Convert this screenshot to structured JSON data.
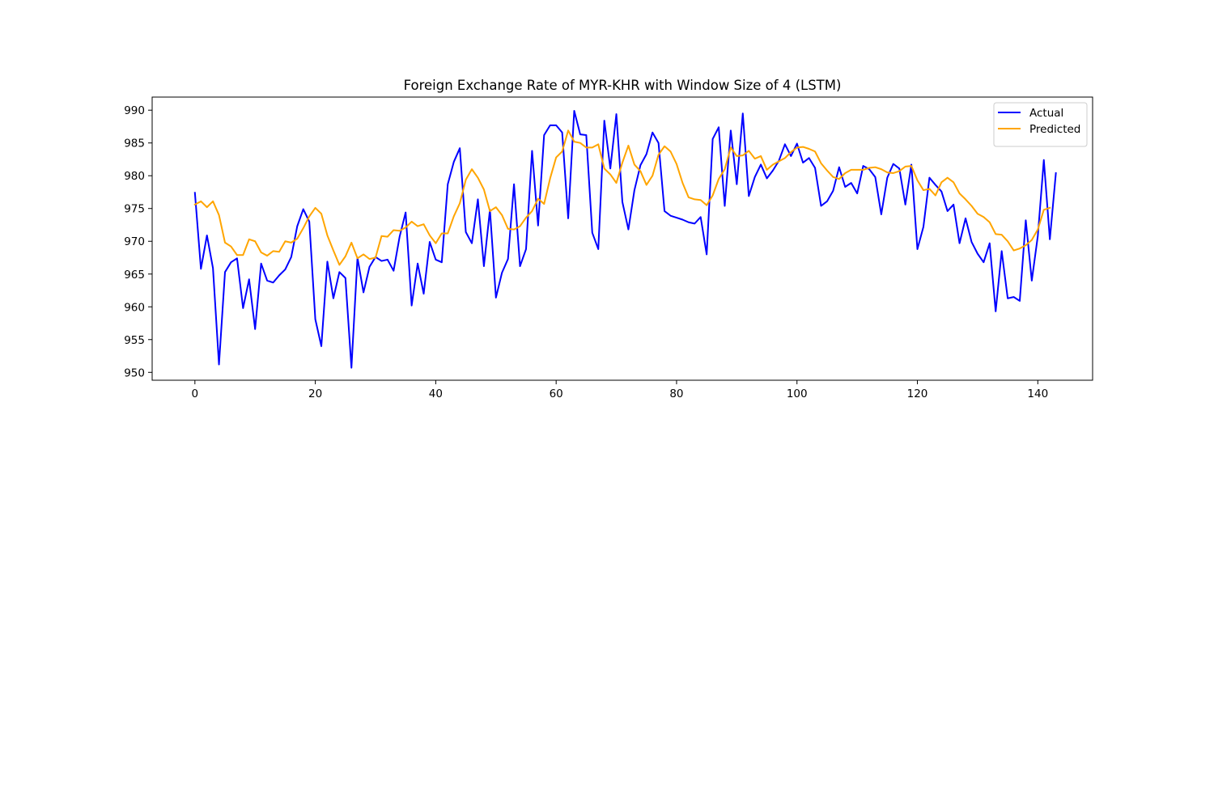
{
  "chart_data": {
    "type": "line",
    "title": "Foreign Exchange Rate of MYR-KHR with Window Size of 4 (LSTM)",
    "xlabel": "",
    "ylabel": "",
    "xlim": [
      -7.1,
      149.1
    ],
    "ylim": [
      948.8,
      992.0
    ],
    "x_ticks": [
      0,
      20,
      40,
      60,
      80,
      100,
      120,
      140
    ],
    "y_ticks": [
      950,
      955,
      960,
      965,
      970,
      975,
      980,
      985,
      990
    ],
    "grid": false,
    "legend": "upper right",
    "series": [
      {
        "name": "Actual",
        "color": "#0000ff",
        "values": [
          977.4,
          965.8,
          970.9,
          965.9,
          951.2,
          965.3,
          966.8,
          967.4,
          959.8,
          964.2,
          956.6,
          966.6,
          964.0,
          963.7,
          964.8,
          965.7,
          967.6,
          972.3,
          974.9,
          973.0,
          958.1,
          954.0,
          966.9,
          961.3,
          965.3,
          964.4,
          950.7,
          967.5,
          962.2,
          966.1,
          967.6,
          967.0,
          967.2,
          965.5,
          970.7,
          974.4,
          960.2,
          966.6,
          962.0,
          969.9,
          967.2,
          966.8,
          978.7,
          982.1,
          984.2,
          971.4,
          969.7,
          976.4,
          966.2,
          974.8,
          961.4,
          965.2,
          967.3,
          978.7,
          966.2,
          968.8,
          983.8,
          972.4,
          986.2,
          987.7,
          987.7,
          986.6,
          973.5,
          989.9,
          986.3,
          986.2,
          971.3,
          968.8,
          988.4,
          981.1,
          989.4,
          976.0,
          971.8,
          977.8,
          981.6,
          983.3,
          986.6,
          985.0,
          974.6,
          973.9,
          973.6,
          973.3,
          972.9,
          972.7,
          973.7,
          968.0,
          985.6,
          987.4,
          975.4,
          986.9,
          978.7,
          989.5,
          976.9,
          979.8,
          981.7,
          979.6,
          980.8,
          982.3,
          984.8,
          983.0,
          984.9,
          982.0,
          982.7,
          981.2,
          975.4,
          976.1,
          977.7,
          981.3,
          978.3,
          978.9,
          977.3,
          981.5,
          981.0,
          979.8,
          974.1,
          979.7,
          981.8,
          981.1,
          975.6,
          981.7,
          968.8,
          972.2,
          979.7,
          978.6,
          977.6,
          974.6,
          975.6,
          969.7,
          973.5,
          969.9,
          968.1,
          966.8,
          969.7,
          959.3,
          968.5,
          961.3,
          961.5,
          960.9,
          973.2,
          964.0,
          970.8,
          982.4,
          970.3,
          980.4
        ]
      },
      {
        "name": "Predicted",
        "color": "#ffa500",
        "values": [
          975.6,
          976.1,
          975.2,
          976.1,
          974.0,
          969.8,
          969.2,
          967.9,
          967.9,
          970.3,
          970.0,
          968.3,
          967.8,
          968.5,
          968.4,
          970.0,
          969.8,
          970.4,
          972.0,
          973.8,
          975.1,
          974.2,
          970.9,
          968.6,
          966.4,
          967.7,
          969.8,
          967.4,
          968.0,
          967.3,
          967.5,
          970.8,
          970.7,
          971.7,
          971.6,
          972.1,
          973.0,
          972.3,
          972.6,
          970.9,
          969.7,
          971.2,
          971.2,
          973.8,
          975.8,
          979.4,
          981.0,
          979.7,
          977.9,
          974.6,
          975.2,
          974.0,
          971.9,
          971.8,
          972.3,
          973.6,
          974.6,
          976.5,
          975.7,
          979.6,
          982.8,
          983.7,
          986.9,
          985.2,
          985.0,
          984.3,
          984.3,
          984.8,
          981.1,
          980.2,
          978.9,
          982.0,
          984.6,
          981.7,
          980.7,
          978.6,
          980.0,
          983.2,
          984.5,
          983.7,
          981.8,
          978.9,
          976.7,
          976.4,
          976.3,
          975.5,
          977.0,
          979.5,
          981.0,
          984.3,
          983.0,
          983.1,
          983.8,
          982.6,
          983.0,
          980.9,
          981.7,
          982.2,
          982.7,
          983.6,
          984.3,
          984.4,
          984.1,
          983.7,
          981.9,
          980.8,
          979.8,
          979.5,
          980.4,
          980.9,
          980.9,
          980.9,
          981.2,
          981.3,
          981.0,
          980.5,
          980.4,
          980.7,
          981.4,
          981.5,
          979.3,
          977.8,
          978.0,
          977.0,
          979.0,
          979.7,
          979.0,
          977.3,
          976.4,
          975.4,
          974.2,
          973.7,
          972.9,
          971.1,
          971.0,
          970.0,
          968.6,
          968.9,
          969.4,
          970.2,
          971.8,
          974.8,
          975.1
        ]
      }
    ]
  }
}
